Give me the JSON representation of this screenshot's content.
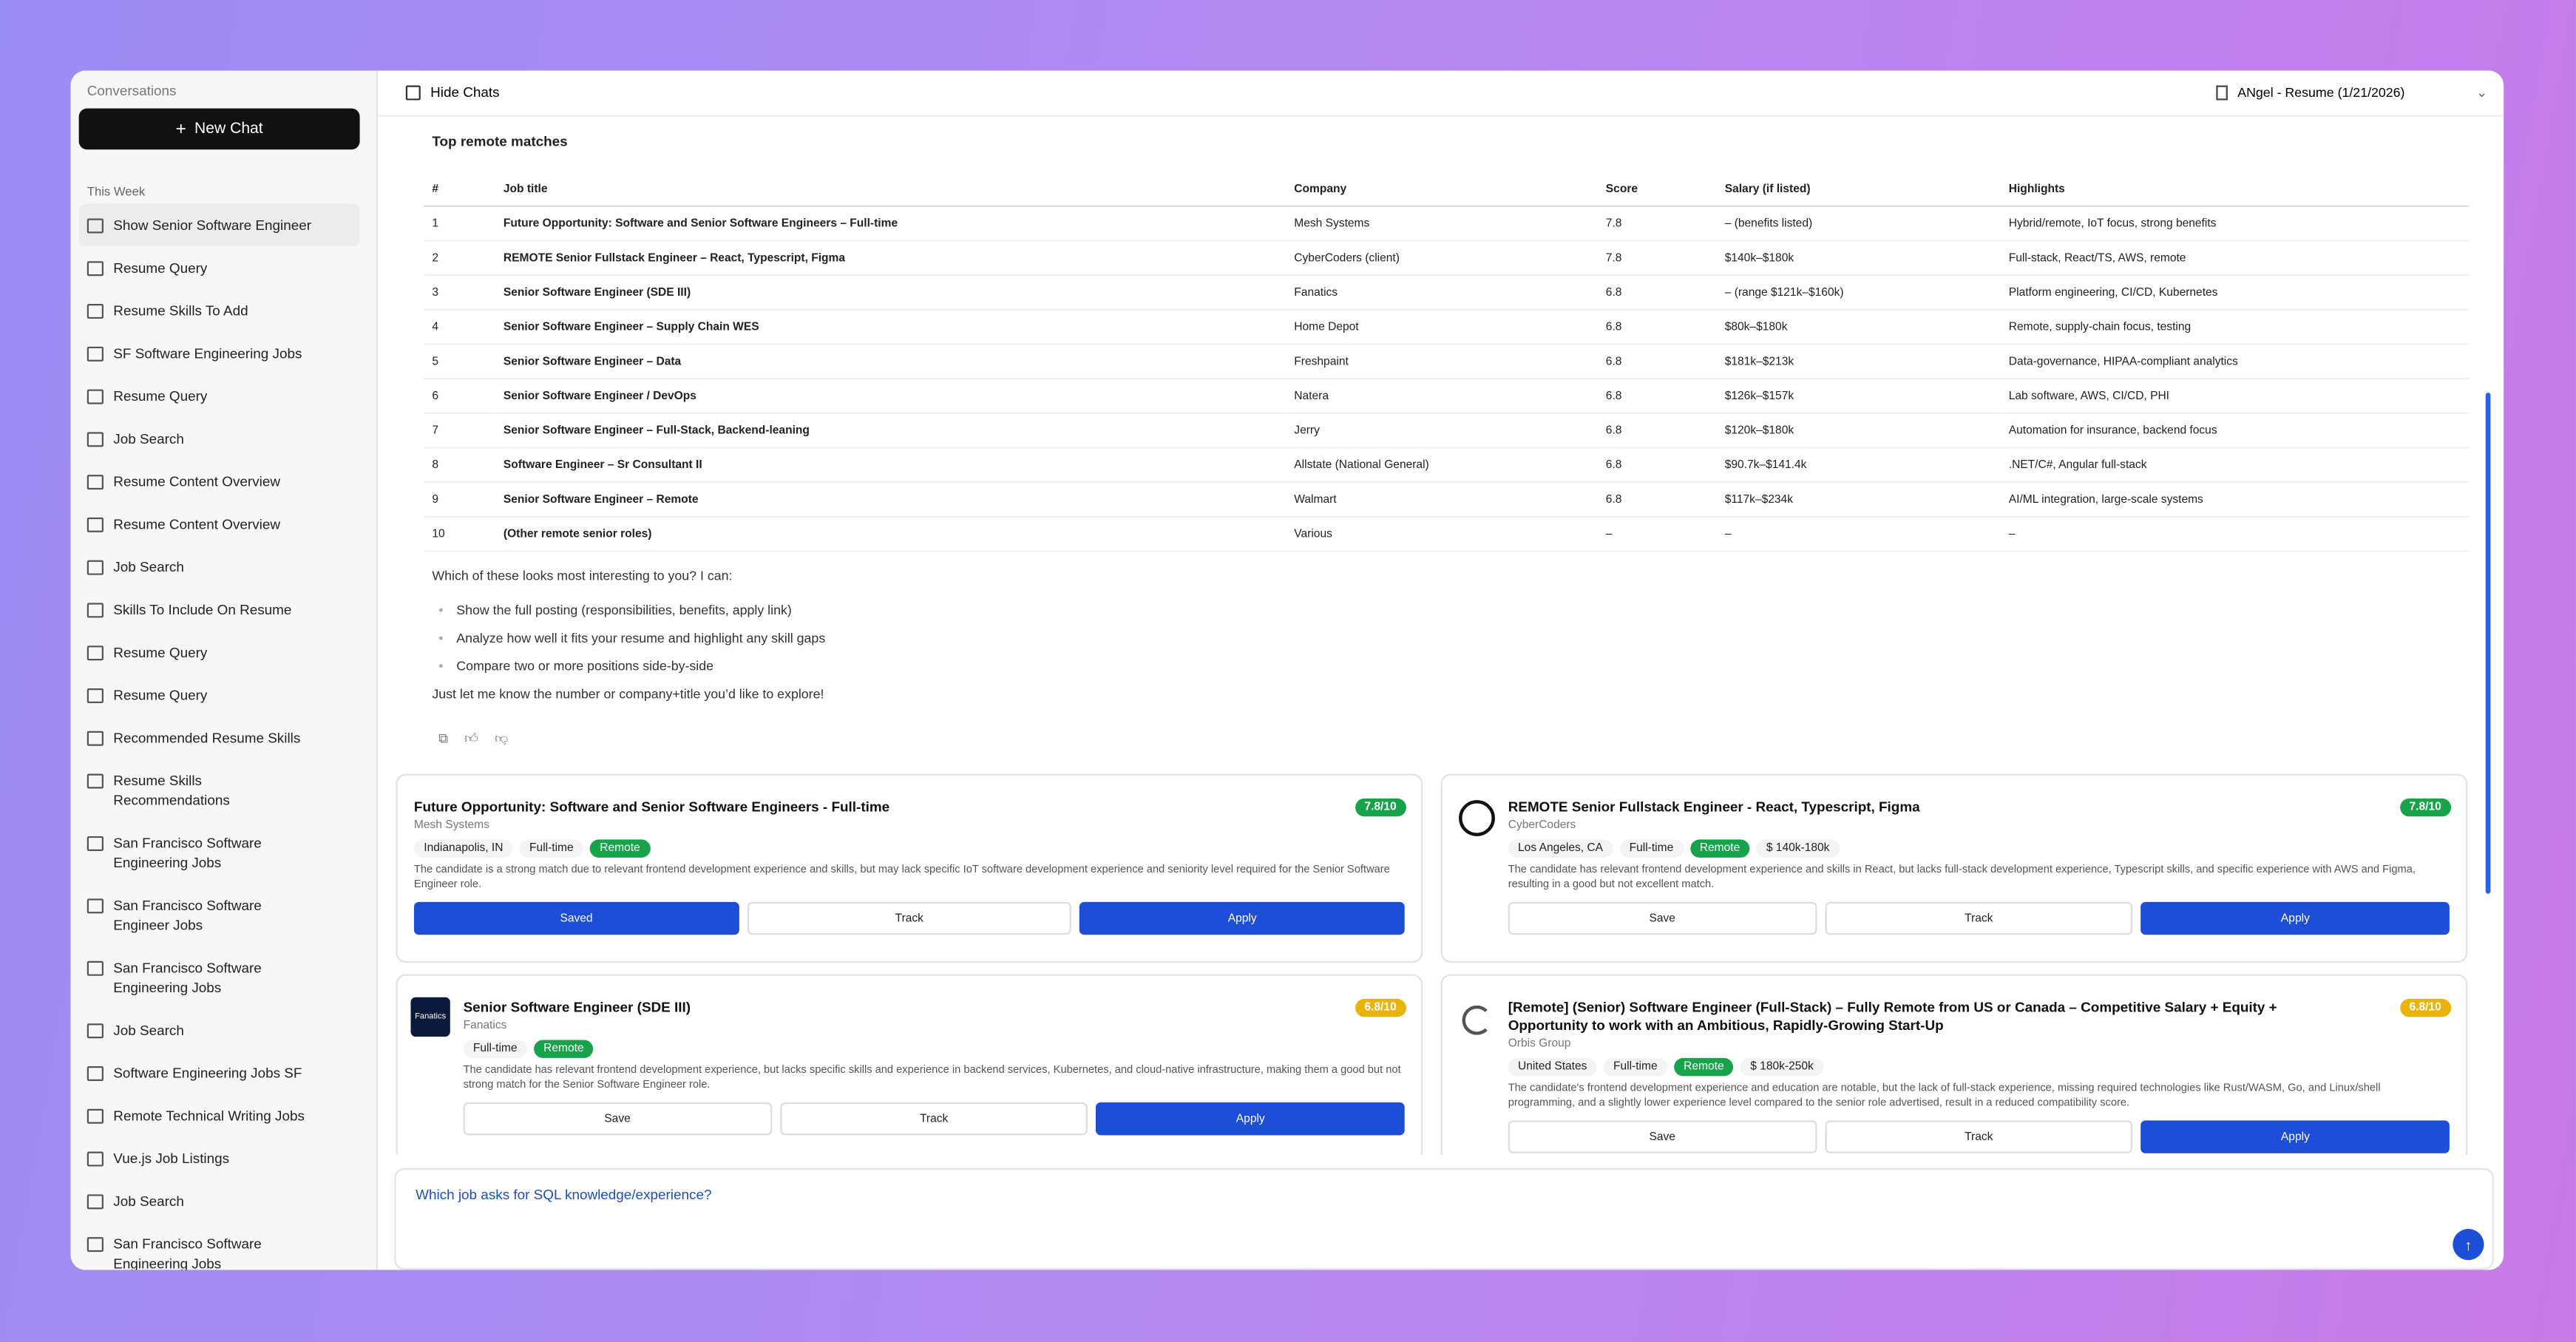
{
  "sidebar": {
    "heading": "Conversations",
    "new_chat": "New Chat",
    "section": "This Week",
    "items": [
      "Show Senior Software Engineer",
      "Resume Query",
      "Resume Skills To Add",
      "SF Software Engineering Jobs",
      "Resume Query",
      "Job Search",
      "Resume Content Overview",
      "Resume Content Overview",
      "Job Search",
      "Skills To Include On Resume",
      "Resume Query",
      "Resume Query",
      "Recommended Resume Skills",
      "Resume Skills Recommendations",
      "San Francisco Software Engineering Jobs",
      "San Francisco Software Engineer Jobs",
      "San Francisco Software Engineering Jobs",
      "Job Search",
      "Software Engineering Jobs SF",
      "Remote Technical Writing Jobs",
      "Vue.js Job Listings",
      "Job Search",
      "San Francisco Software Engineering Jobs"
    ]
  },
  "header": {
    "hide_chats": "Hide Chats",
    "resume": "ANgel - Resume (1/21/2026)"
  },
  "message": {
    "heading": "Top remote matches",
    "table": {
      "columns": [
        "#",
        "Job title",
        "Company",
        "Score",
        "Salary (if listed)",
        "Highlights"
      ],
      "rows": [
        [
          "1",
          "Future Opportunity: Software and Senior Software Engineers – Full-time",
          "Mesh Systems",
          "7.8",
          "– (benefits listed)",
          "Hybrid/remote, IoT focus, strong benefits"
        ],
        [
          "2",
          "REMOTE Senior Fullstack Engineer – React, Typescript, Figma",
          "CyberCoders (client)",
          "7.8",
          "$140k–$180k",
          "Full-stack, React/TS, AWS, remote"
        ],
        [
          "3",
          "Senior Software Engineer (SDE III)",
          "Fanatics",
          "6.8",
          "– (range $121k–$160k)",
          "Platform engineering, CI/CD, Kubernetes"
        ],
        [
          "4",
          "Senior Software Engineer – Supply Chain WES",
          "Home Depot",
          "6.8",
          "$80k–$180k",
          "Remote, supply-chain focus, testing"
        ],
        [
          "5",
          "Senior Software Engineer – Data",
          "Freshpaint",
          "6.8",
          "$181k–$213k",
          "Data-governance, HIPAA-compliant analytics"
        ],
        [
          "6",
          "Senior Software Engineer / DevOps",
          "Natera",
          "6.8",
          "$126k–$157k",
          "Lab software, AWS, CI/CD, PHI"
        ],
        [
          "7",
          "Senior Software Engineer – Full-Stack, Backend-leaning",
          "Jerry",
          "6.8",
          "$120k–$180k",
          "Automation for insurance, backend focus"
        ],
        [
          "8",
          "Software Engineer – Sr Consultant II",
          "Allstate (National General)",
          "6.8",
          "$90.7k–$141.4k",
          ".NET/C#, Angular full-stack"
        ],
        [
          "9",
          "Senior Software Engineer – Remote",
          "Walmart",
          "6.8",
          "$117k–$234k",
          "AI/ML integration, large-scale systems"
        ],
        [
          "10",
          "(Other remote senior roles)",
          "Various",
          "–",
          "–",
          "–"
        ]
      ]
    },
    "question": "Which of these looks most interesting to you? I can:",
    "bullets": [
      "Show the full posting (responsibilities, benefits, apply link)",
      "Analyze how well it fits your resume and highlight any skill gaps",
      "Compare two or more positions side-by-side"
    ],
    "closing": "Just let me know the number or company+title you’d like to explore!"
  },
  "cards": [
    {
      "title": "Future Opportunity: Software and Senior Software Engineers - Full-time",
      "company": "Mesh Systems",
      "score": "7.8/10",
      "score_color": "#16a34a",
      "chips": [
        "Indianapolis, IN",
        "Full-time",
        "Remote"
      ],
      "summary": "The candidate is a strong match due to relevant frontend development experience and skills, but may lack specific IoT software development experience and seniority level required for the Senior Software Engineer role.",
      "actions": [
        "Saved",
        "Track",
        "Apply"
      ]
    },
    {
      "title": "REMOTE Senior Fullstack Engineer - React, Typescript, Figma",
      "company": "CyberCoders",
      "score": "7.8/10",
      "score_color": "#16a34a",
      "logo": "cc",
      "chips": [
        "Los Angeles, CA",
        "Full-time",
        "Remote",
        "$ 140k-180k"
      ],
      "summary": "The candidate has relevant frontend development experience and skills in React, but lacks full-stack development experience, Typescript skills, and specific experience with AWS and Figma, resulting in a good but not excellent match.",
      "actions": [
        "Save",
        "Track",
        "Apply"
      ]
    },
    {
      "title": "Senior Software Engineer (SDE III)",
      "company": "Fanatics",
      "score": "6.8/10",
      "score_color": "#eab308",
      "logo": "Fanatics",
      "chips": [
        "Full-time",
        "Remote"
      ],
      "summary": "The candidate has relevant frontend development experience, but lacks specific skills and experience in backend services, Kubernetes, and cloud-native infrastructure, making them a good but not strong match for the Senior Software Engineer role.",
      "actions": [
        "Save",
        "Track",
        "Apply"
      ]
    },
    {
      "title": "[Remote] (Senior) Software Engineer (Full-Stack) – Fully Remote from US or Canada – Competitive Salary + Equity + Opportunity to work with an Ambitious, Rapidly-Growing Start-Up",
      "company": "Orbis Group",
      "score": "6.8/10",
      "score_color": "#eab308",
      "logo": "orbis",
      "chips": [
        "United States",
        "Full-time",
        "Remote",
        "$ 180k-250k"
      ],
      "summary": "The candidate's frontend development experience and education are notable, but the lack of full-stack experience, missing required technologies like Rust/WASM, Go, and Linux/shell programming, and a slightly lower experience level compared to the senior role advertised, result in a reduced compatibility score.",
      "actions": [
        "Save",
        "Track",
        "Apply"
      ]
    }
  ],
  "input": {
    "text": "Which job asks for SQL knowledge/experience?"
  }
}
